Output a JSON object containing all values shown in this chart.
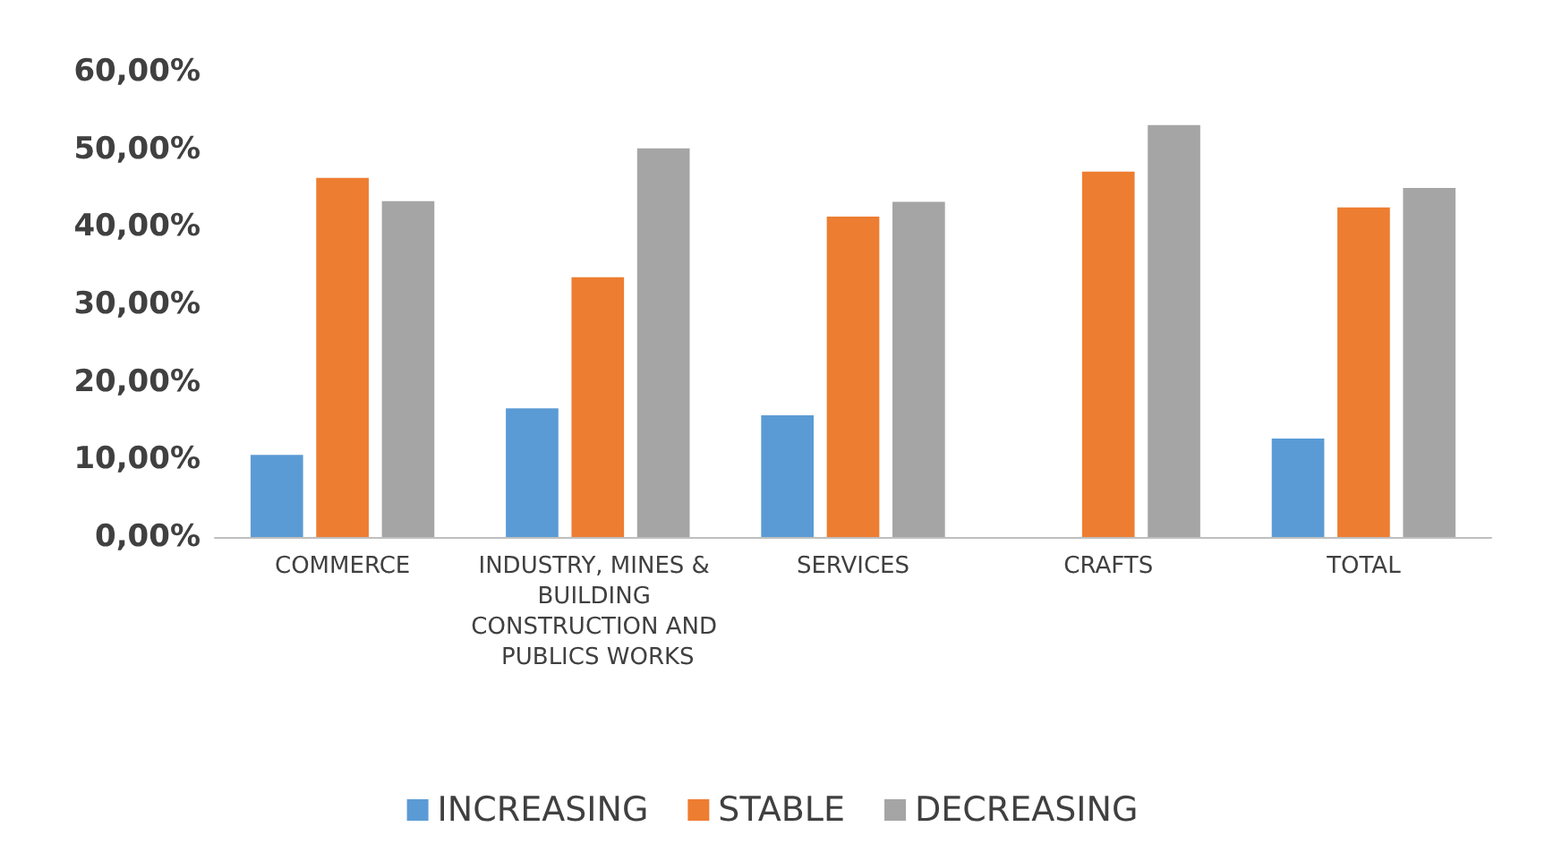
{
  "chart_data": {
    "type": "bar",
    "categories": [
      "COMMERCE",
      "INDUSTRY, MINES & BUILDING CONSTRUCTION AND PUBLICS WORKS",
      "SERVICES",
      "CRAFTS",
      "TOTAL"
    ],
    "series": [
      {
        "name": "INCREASING",
        "color": "#5b9bd5",
        "values": [
          10.6,
          16.6,
          15.7,
          0,
          12.7
        ]
      },
      {
        "name": "STABLE",
        "color": "#ed7d31",
        "values": [
          46.3,
          33.5,
          41.3,
          47.1,
          42.5
        ]
      },
      {
        "name": "DECREASING",
        "color": "#a5a5a5",
        "values": [
          43.3,
          50.1,
          43.2,
          53.1,
          45
        ]
      }
    ],
    "ylim": [
      0,
      60
    ],
    "yticks": [
      {
        "value": 0,
        "label": "0,00%"
      },
      {
        "value": 10,
        "label": "10,00%"
      },
      {
        "value": 20,
        "label": "20,00%"
      },
      {
        "value": 30,
        "label": "30,00%"
      },
      {
        "value": 40,
        "label": "40,00%"
      },
      {
        "value": 50,
        "label": "50,00%"
      },
      {
        "value": 60,
        "label": "60,00%"
      }
    ],
    "grid": false,
    "legend": "bottom"
  }
}
